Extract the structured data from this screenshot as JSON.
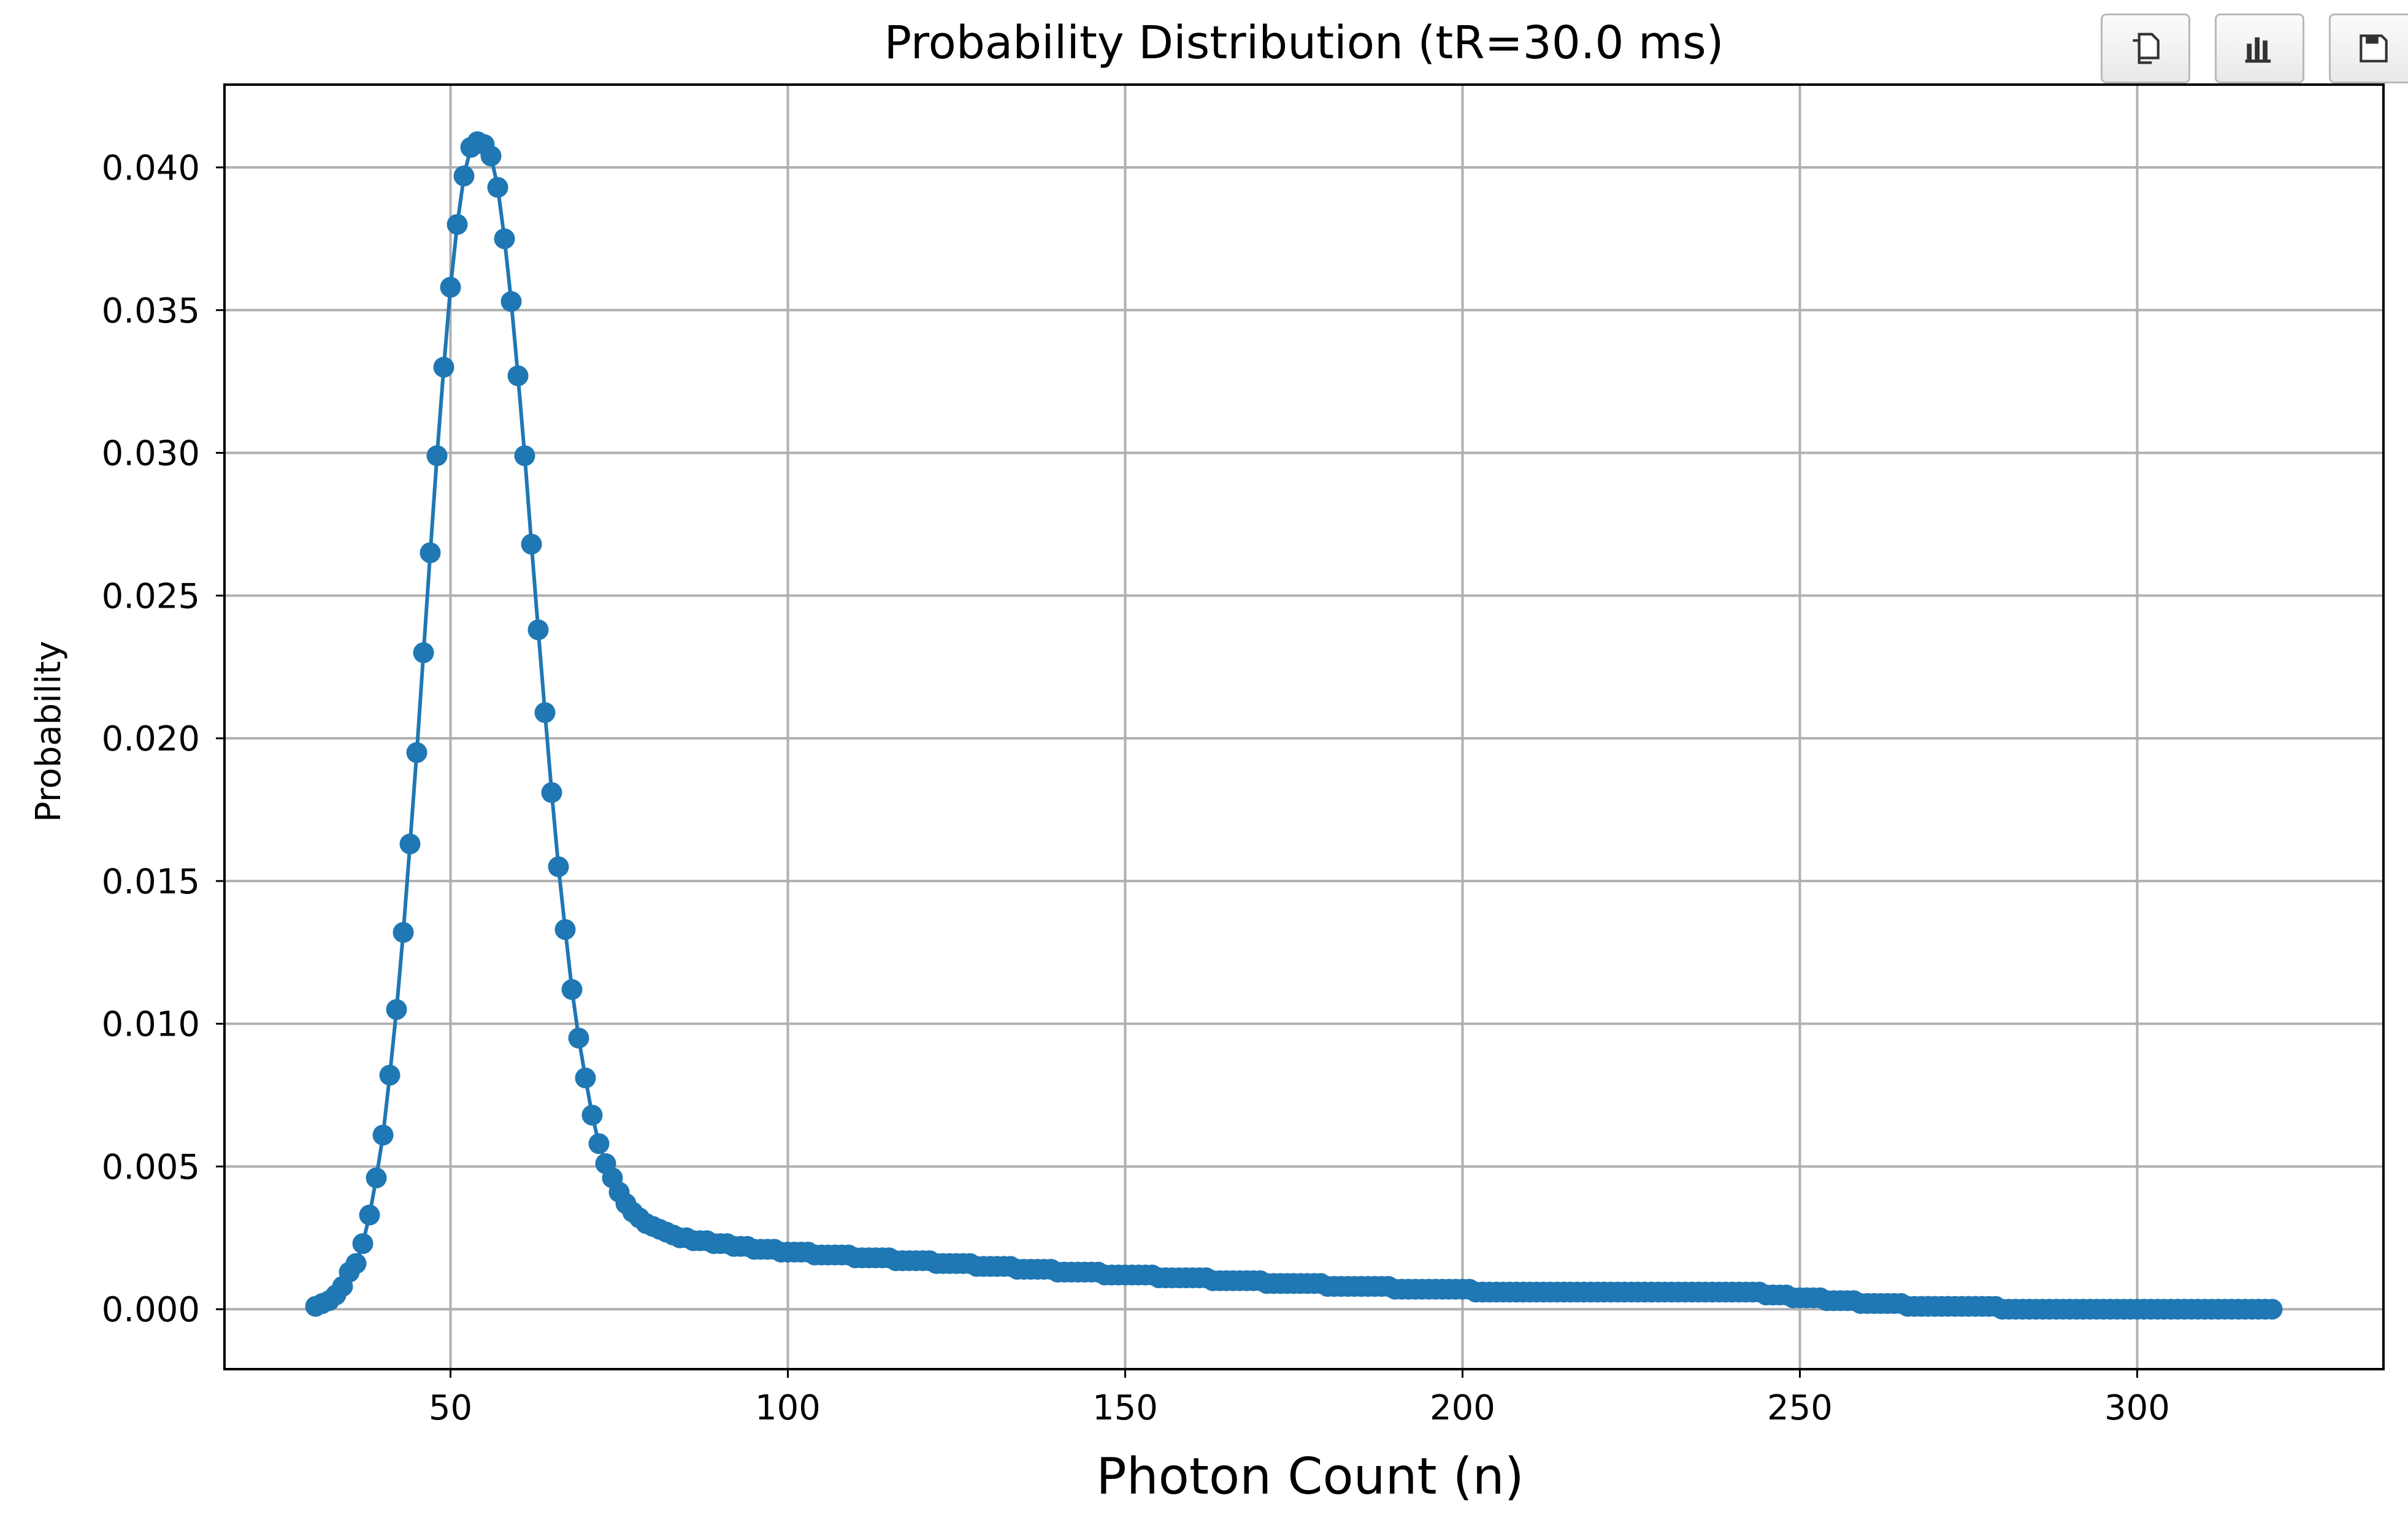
{
  "toolbar": {
    "buttons": [
      {
        "icon": "copy-icon"
      },
      {
        "icon": "bar-chart-icon"
      },
      {
        "icon": "save-icon"
      }
    ]
  },
  "chart_data": {
    "type": "line",
    "title": "Probability Distribution (tR=30.0 ms)",
    "xlabel": "Photon Count (n)",
    "ylabel": "Probability",
    "xlim": [
      16.5,
      336.5
    ],
    "ylim": [
      -0.0021,
      0.0429
    ],
    "xticks": [
      50,
      100,
      150,
      200,
      250,
      300
    ],
    "xtick_labels": [
      "50",
      "100",
      "150",
      "200",
      "250",
      "300"
    ],
    "yticks": [
      0.0,
      0.005,
      0.01,
      0.015,
      0.02,
      0.025,
      0.03,
      0.035,
      0.04
    ],
    "ytick_labels": [
      "0.000",
      "0.005",
      "0.010",
      "0.015",
      "0.020",
      "0.025",
      "0.030",
      "0.035",
      "0.040"
    ],
    "grid": true,
    "marker": "circle",
    "color": "#1f77b4",
    "series": [
      {
        "x_start": 30,
        "x_step": 1,
        "values": [
          0.0001,
          0.0002,
          0.0003,
          0.0005,
          0.0008,
          0.0013,
          0.0016,
          0.0023,
          0.0033,
          0.0046,
          0.0061,
          0.0082,
          0.0105,
          0.0132,
          0.0163,
          0.0195,
          0.023,
          0.0265,
          0.0299,
          0.033,
          0.0358,
          0.038,
          0.0397,
          0.0407,
          0.0409,
          0.0408,
          0.0404,
          0.0393,
          0.0375,
          0.0353,
          0.0327,
          0.0299,
          0.0268,
          0.0238,
          0.0209,
          0.0181,
          0.0155,
          0.0133,
          0.0112,
          0.0095,
          0.0081,
          0.0068,
          0.0058,
          0.0051,
          0.0046,
          0.0041,
          0.0037,
          0.0034,
          0.0032,
          0.003,
          0.0029,
          0.0028,
          0.0027,
          0.0026,
          0.0025,
          0.0025,
          0.0024,
          0.0024,
          0.0024,
          0.0023,
          0.0023,
          0.0023,
          0.0022,
          0.0022,
          0.0022,
          0.0021,
          0.0021,
          0.0021,
          0.0021,
          0.002,
          0.002,
          0.002,
          0.002,
          0.002,
          0.0019,
          0.0019,
          0.0019,
          0.0019,
          0.0019,
          0.0019,
          0.0018,
          0.0018,
          0.0018,
          0.0018,
          0.0018,
          0.0018,
          0.0017,
          0.0017,
          0.0017,
          0.0017,
          0.0017,
          0.0017,
          0.0016,
          0.0016,
          0.0016,
          0.0016,
          0.0016,
          0.0016,
          0.0015,
          0.0015,
          0.0015,
          0.0015,
          0.0015,
          0.0015,
          0.0014,
          0.0014,
          0.0014,
          0.0014,
          0.0014,
          0.0014,
          0.0013,
          0.0013,
          0.0013,
          0.0013,
          0.0013,
          0.0013,
          0.0013,
          0.0012,
          0.0012,
          0.0012,
          0.0012,
          0.0012,
          0.0012,
          0.0012,
          0.0012,
          0.0011,
          0.0011,
          0.0011,
          0.0011,
          0.0011,
          0.0011,
          0.0011,
          0.0011,
          0.001,
          0.001,
          0.001,
          0.001,
          0.001,
          0.001,
          0.001,
          0.001,
          0.0009,
          0.0009,
          0.0009,
          0.0009,
          0.0009,
          0.0009,
          0.0009,
          0.0009,
          0.0009,
          0.0008,
          0.0008,
          0.0008,
          0.0008,
          0.0008,
          0.0008,
          0.0008,
          0.0008,
          0.0008,
          0.0008,
          0.0007,
          0.0007,
          0.0007,
          0.0007,
          0.0007,
          0.0007,
          0.0007,
          0.0007,
          0.0007,
          0.0007,
          0.0007,
          0.0007,
          0.0006,
          0.0006,
          0.0006,
          0.0006,
          0.0006,
          0.0006,
          0.0006,
          0.0006,
          0.0006,
          0.0006,
          0.0006,
          0.0006,
          0.0006,
          0.0006,
          0.0006,
          0.0006,
          0.0006,
          0.0006,
          0.0006,
          0.0006,
          0.0006,
          0.0006,
          0.0006,
          0.0006,
          0.0006,
          0.0006,
          0.0006,
          0.0006,
          0.0006,
          0.0006,
          0.0006,
          0.0006,
          0.0006,
          0.0006,
          0.0006,
          0.0006,
          0.0006,
          0.0006,
          0.0006,
          0.0006,
          0.0006,
          0.0006,
          0.0006,
          0.0005,
          0.0005,
          0.0005,
          0.0005,
          0.0004,
          0.0004,
          0.0004,
          0.0004,
          0.0004,
          0.0003,
          0.0003,
          0.0003,
          0.0003,
          0.0003,
          0.0002,
          0.0002,
          0.0002,
          0.0002,
          0.0002,
          0.0002,
          0.0002,
          0.0001,
          0.0001,
          0.0001,
          0.0001,
          0.0001,
          0.0001,
          0.0001,
          0.0001,
          0.0001,
          0.0001,
          0.0001,
          0.0001,
          0.0001,
          0.0001,
          0.0,
          0.0,
          0.0,
          0.0,
          0.0,
          0.0,
          0.0,
          0.0,
          0.0,
          0.0,
          0.0,
          0.0,
          0.0,
          0.0,
          0.0,
          0.0,
          0.0,
          0.0,
          0.0,
          0.0,
          0.0,
          0.0,
          0.0,
          0.0,
          0.0,
          0.0,
          0.0,
          0.0,
          0.0,
          0.0,
          0.0,
          0.0,
          0.0,
          0.0,
          0.0,
          0.0,
          0.0,
          0.0,
          0.0,
          0.0,
          0.0
        ]
      }
    ]
  }
}
